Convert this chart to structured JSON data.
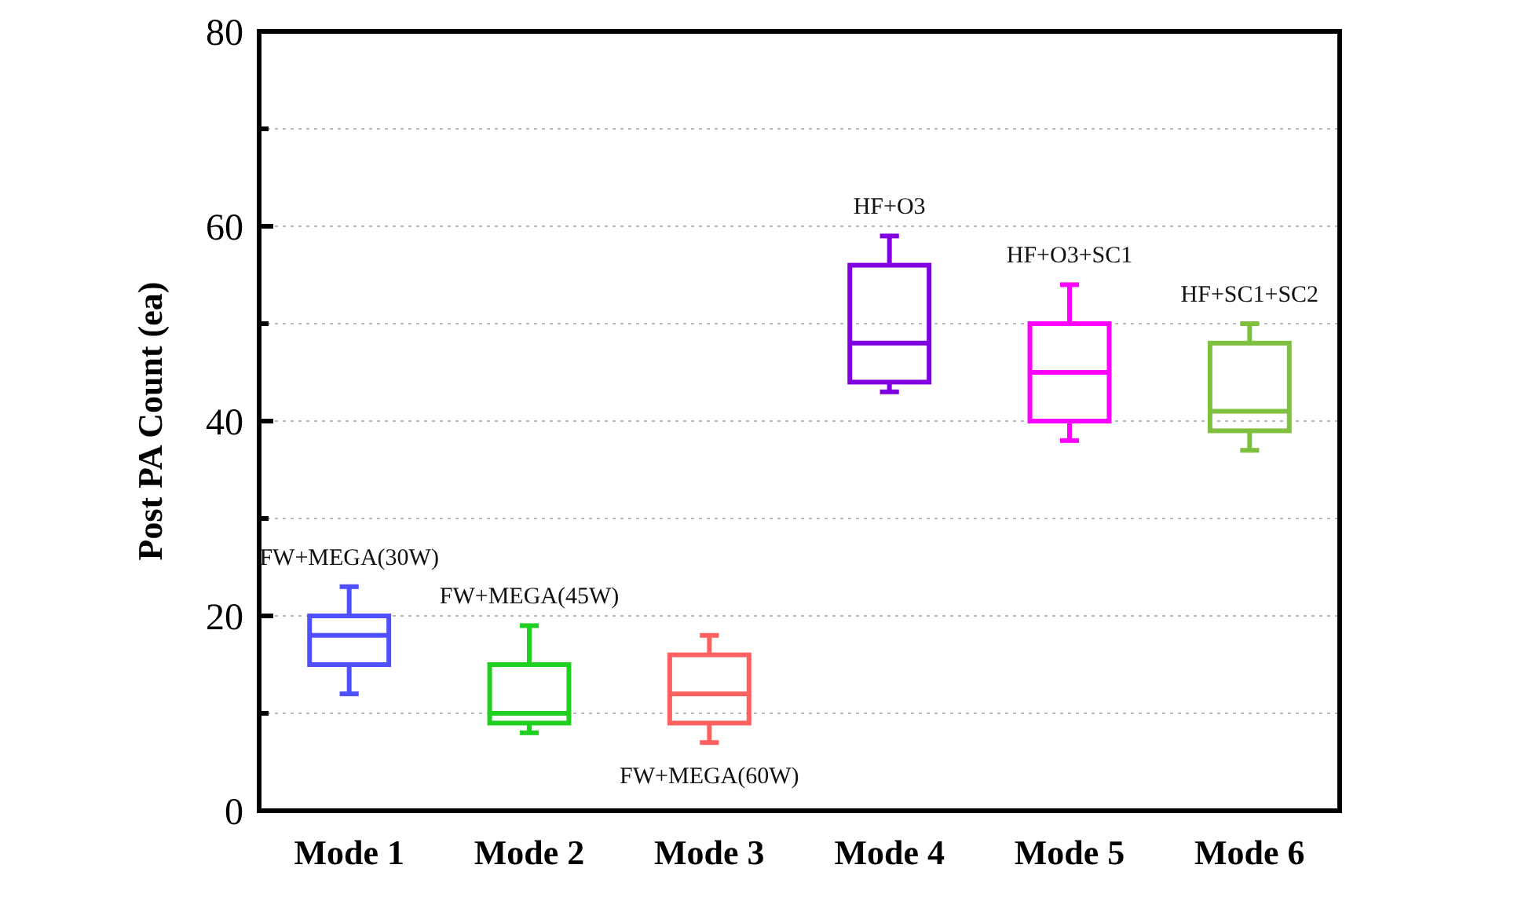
{
  "chart_data": {
    "type": "box",
    "ylabel": "Post PA Count (ea)",
    "categories": [
      "Mode 1",
      "Mode 2",
      "Mode 3",
      "Mode 4",
      "Mode 5",
      "Mode 6"
    ],
    "boxes": [
      {
        "low": 12,
        "q1": 15,
        "median": 18,
        "q3": 20,
        "high": 23
      },
      {
        "low": 8,
        "q1": 9,
        "median": 10,
        "q3": 15,
        "high": 19
      },
      {
        "low": 7,
        "q1": 9,
        "median": 12,
        "q3": 16,
        "high": 18
      },
      {
        "low": 43,
        "q1": 44,
        "median": 48,
        "q3": 56,
        "high": 59
      },
      {
        "low": 38,
        "q1": 40,
        "median": 45,
        "q3": 50,
        "high": 54
      },
      {
        "low": 37,
        "q1": 39,
        "median": 41,
        "q3": 48,
        "high": 50
      }
    ],
    "colors": [
      "#5050ff",
      "#20d020",
      "#ff6060",
      "#8000e0",
      "#ff00ff",
      "#80c040"
    ],
    "ylim": [
      0,
      80
    ],
    "yticks": [
      0,
      {
        "value": 10,
        "label": null
      },
      20,
      {
        "value": 30,
        "label": null
      },
      40,
      {
        "value": 50,
        "label": null
      },
      60,
      {
        "value": 70,
        "label": null
      },
      80
    ],
    "grid": "y",
    "annotations": [
      "FW+MEGA(30W)",
      "FW+MEGA(45W)",
      "FW+MEGA(60W)",
      "HF+O3",
      "HF+O3+SC1",
      "HF+SC1+SC2"
    ]
  }
}
